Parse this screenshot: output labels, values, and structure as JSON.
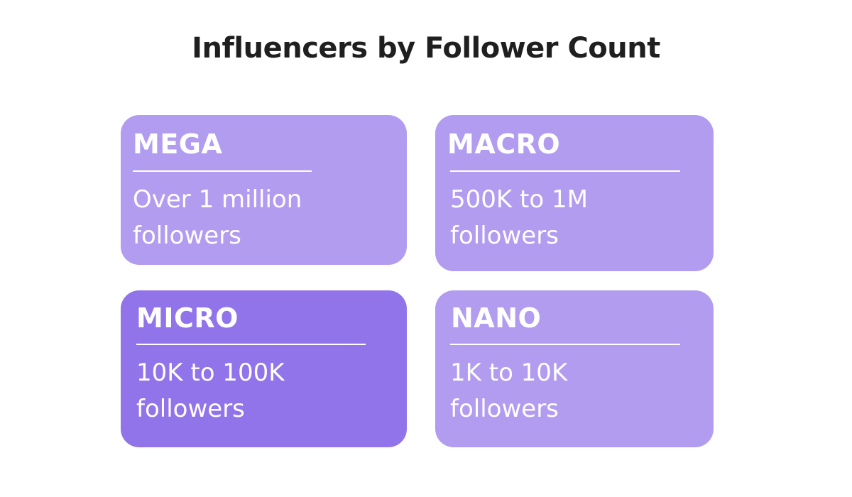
{
  "title": "Influencers by Follower Count",
  "colors": {
    "card_light": "#b29cf0",
    "card_dark": "#9274ea",
    "title_text": "#1f1f1f",
    "card_text": "#ffffff"
  },
  "cards": {
    "mega": {
      "heading": "MEGA",
      "line1": "Over 1 million",
      "line2": "followers"
    },
    "macro": {
      "heading": "MACRO",
      "line1": "500K to 1M",
      "line2": "followers"
    },
    "micro": {
      "heading": "MICRO",
      "line1": "10K to 100K",
      "line2": "followers"
    },
    "nano": {
      "heading": "NANO",
      "line1": "1K to 10K",
      "line2": "followers"
    }
  }
}
